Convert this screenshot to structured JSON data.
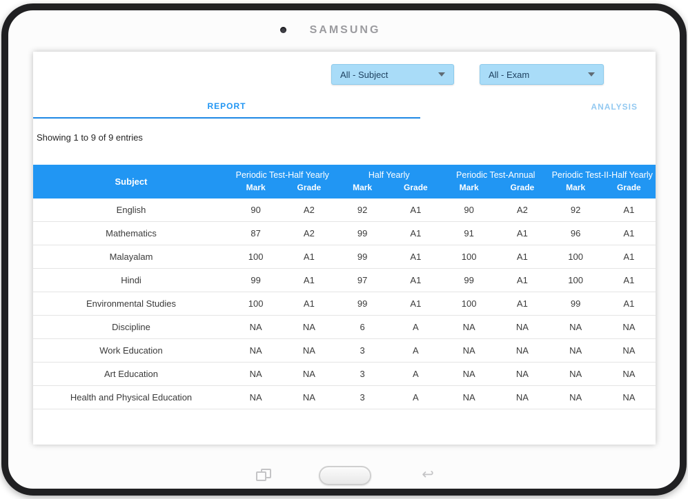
{
  "device": {
    "brand": "SAMSUNG"
  },
  "filters": {
    "subject_dropdown": {
      "value": "All - Subject"
    },
    "exam_dropdown": {
      "value": "All - Exam"
    }
  },
  "tabs": {
    "report": "REPORT",
    "analysis": "ANALYSIS"
  },
  "status_text": "Showing 1 to 9 of 9 entries",
  "table": {
    "subject_header": "Subject",
    "groups": [
      {
        "label": "Periodic Test-Half Yearly",
        "sub": [
          "Mark",
          "Grade"
        ]
      },
      {
        "label": "Half Yearly",
        "sub": [
          "Mark",
          "Grade"
        ]
      },
      {
        "label": "Periodic Test-Annual",
        "sub": [
          "Mark",
          "Grade"
        ]
      },
      {
        "label": "Periodic Test-II-Half Yearly",
        "sub": [
          "Mark",
          "Grade"
        ]
      }
    ],
    "rows": [
      {
        "subject": "English",
        "values": [
          "90",
          "A2",
          "92",
          "A1",
          "90",
          "A2",
          "92",
          "A1"
        ]
      },
      {
        "subject": "Mathematics",
        "values": [
          "87",
          "A2",
          "99",
          "A1",
          "91",
          "A1",
          "96",
          "A1"
        ]
      },
      {
        "subject": "Malayalam",
        "values": [
          "100",
          "A1",
          "99",
          "A1",
          "100",
          "A1",
          "100",
          "A1"
        ]
      },
      {
        "subject": "Hindi",
        "values": [
          "99",
          "A1",
          "97",
          "A1",
          "99",
          "A1",
          "100",
          "A1"
        ]
      },
      {
        "subject": "Environmental Studies",
        "values": [
          "100",
          "A1",
          "99",
          "A1",
          "100",
          "A1",
          "99",
          "A1"
        ]
      },
      {
        "subject": "Discipline",
        "values": [
          "NA",
          "NA",
          "6",
          "A",
          "NA",
          "NA",
          "NA",
          "NA"
        ]
      },
      {
        "subject": "Work Education",
        "values": [
          "NA",
          "NA",
          "3",
          "A",
          "NA",
          "NA",
          "NA",
          "NA"
        ]
      },
      {
        "subject": "Art Education",
        "values": [
          "NA",
          "NA",
          "3",
          "A",
          "NA",
          "NA",
          "NA",
          "NA"
        ]
      },
      {
        "subject": "Health and Physical Education",
        "values": [
          "NA",
          "NA",
          "3",
          "A",
          "NA",
          "NA",
          "NA",
          "NA"
        ]
      }
    ]
  },
  "colors": {
    "accent_blue": "#2196F3",
    "table_header_bg": "#2196F3",
    "dropdown_bg": "#A9DCF8",
    "active_tab_text": "#2196F3",
    "inactive_tab_text": "#93C9F1"
  }
}
